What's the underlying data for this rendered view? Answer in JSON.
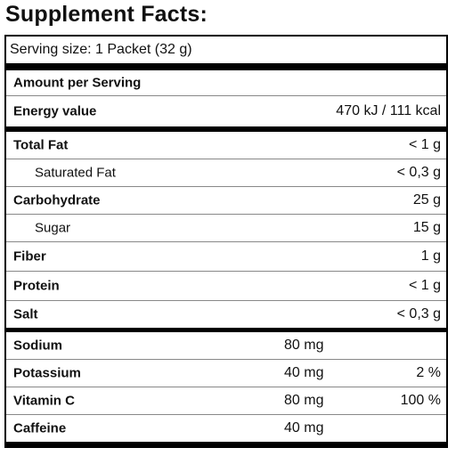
{
  "title": "Supplement Facts:",
  "serving_size": "Serving size: 1 Packet (32 g)",
  "amount_header": "Amount per Serving",
  "energy": {
    "label": "Energy value",
    "value": "470 kJ / 111 kcal"
  },
  "nutrients": [
    {
      "label": "Total Fat",
      "value": "< 1 g"
    },
    {
      "label": "Saturated Fat",
      "value": "< 0,3 g",
      "sub": true
    },
    {
      "label": "Carbohydrate",
      "value": "25 g"
    },
    {
      "label": "Sugar",
      "value": "15 g",
      "sub": true
    },
    {
      "label": "Fiber",
      "value": "1 g"
    },
    {
      "label": "Protein",
      "value": "< 1 g"
    },
    {
      "label": "Salt",
      "value": "< 0,3 g"
    }
  ],
  "others": [
    {
      "label": "Sodium",
      "amount": "80 mg"
    },
    {
      "label": "Potassium",
      "amount": "40 mg",
      "dv": "2 %"
    },
    {
      "label": "Vitamin C",
      "amount": "80 mg",
      "dv": "100 %"
    },
    {
      "label": "Caffeine",
      "amount": "40 mg"
    }
  ]
}
